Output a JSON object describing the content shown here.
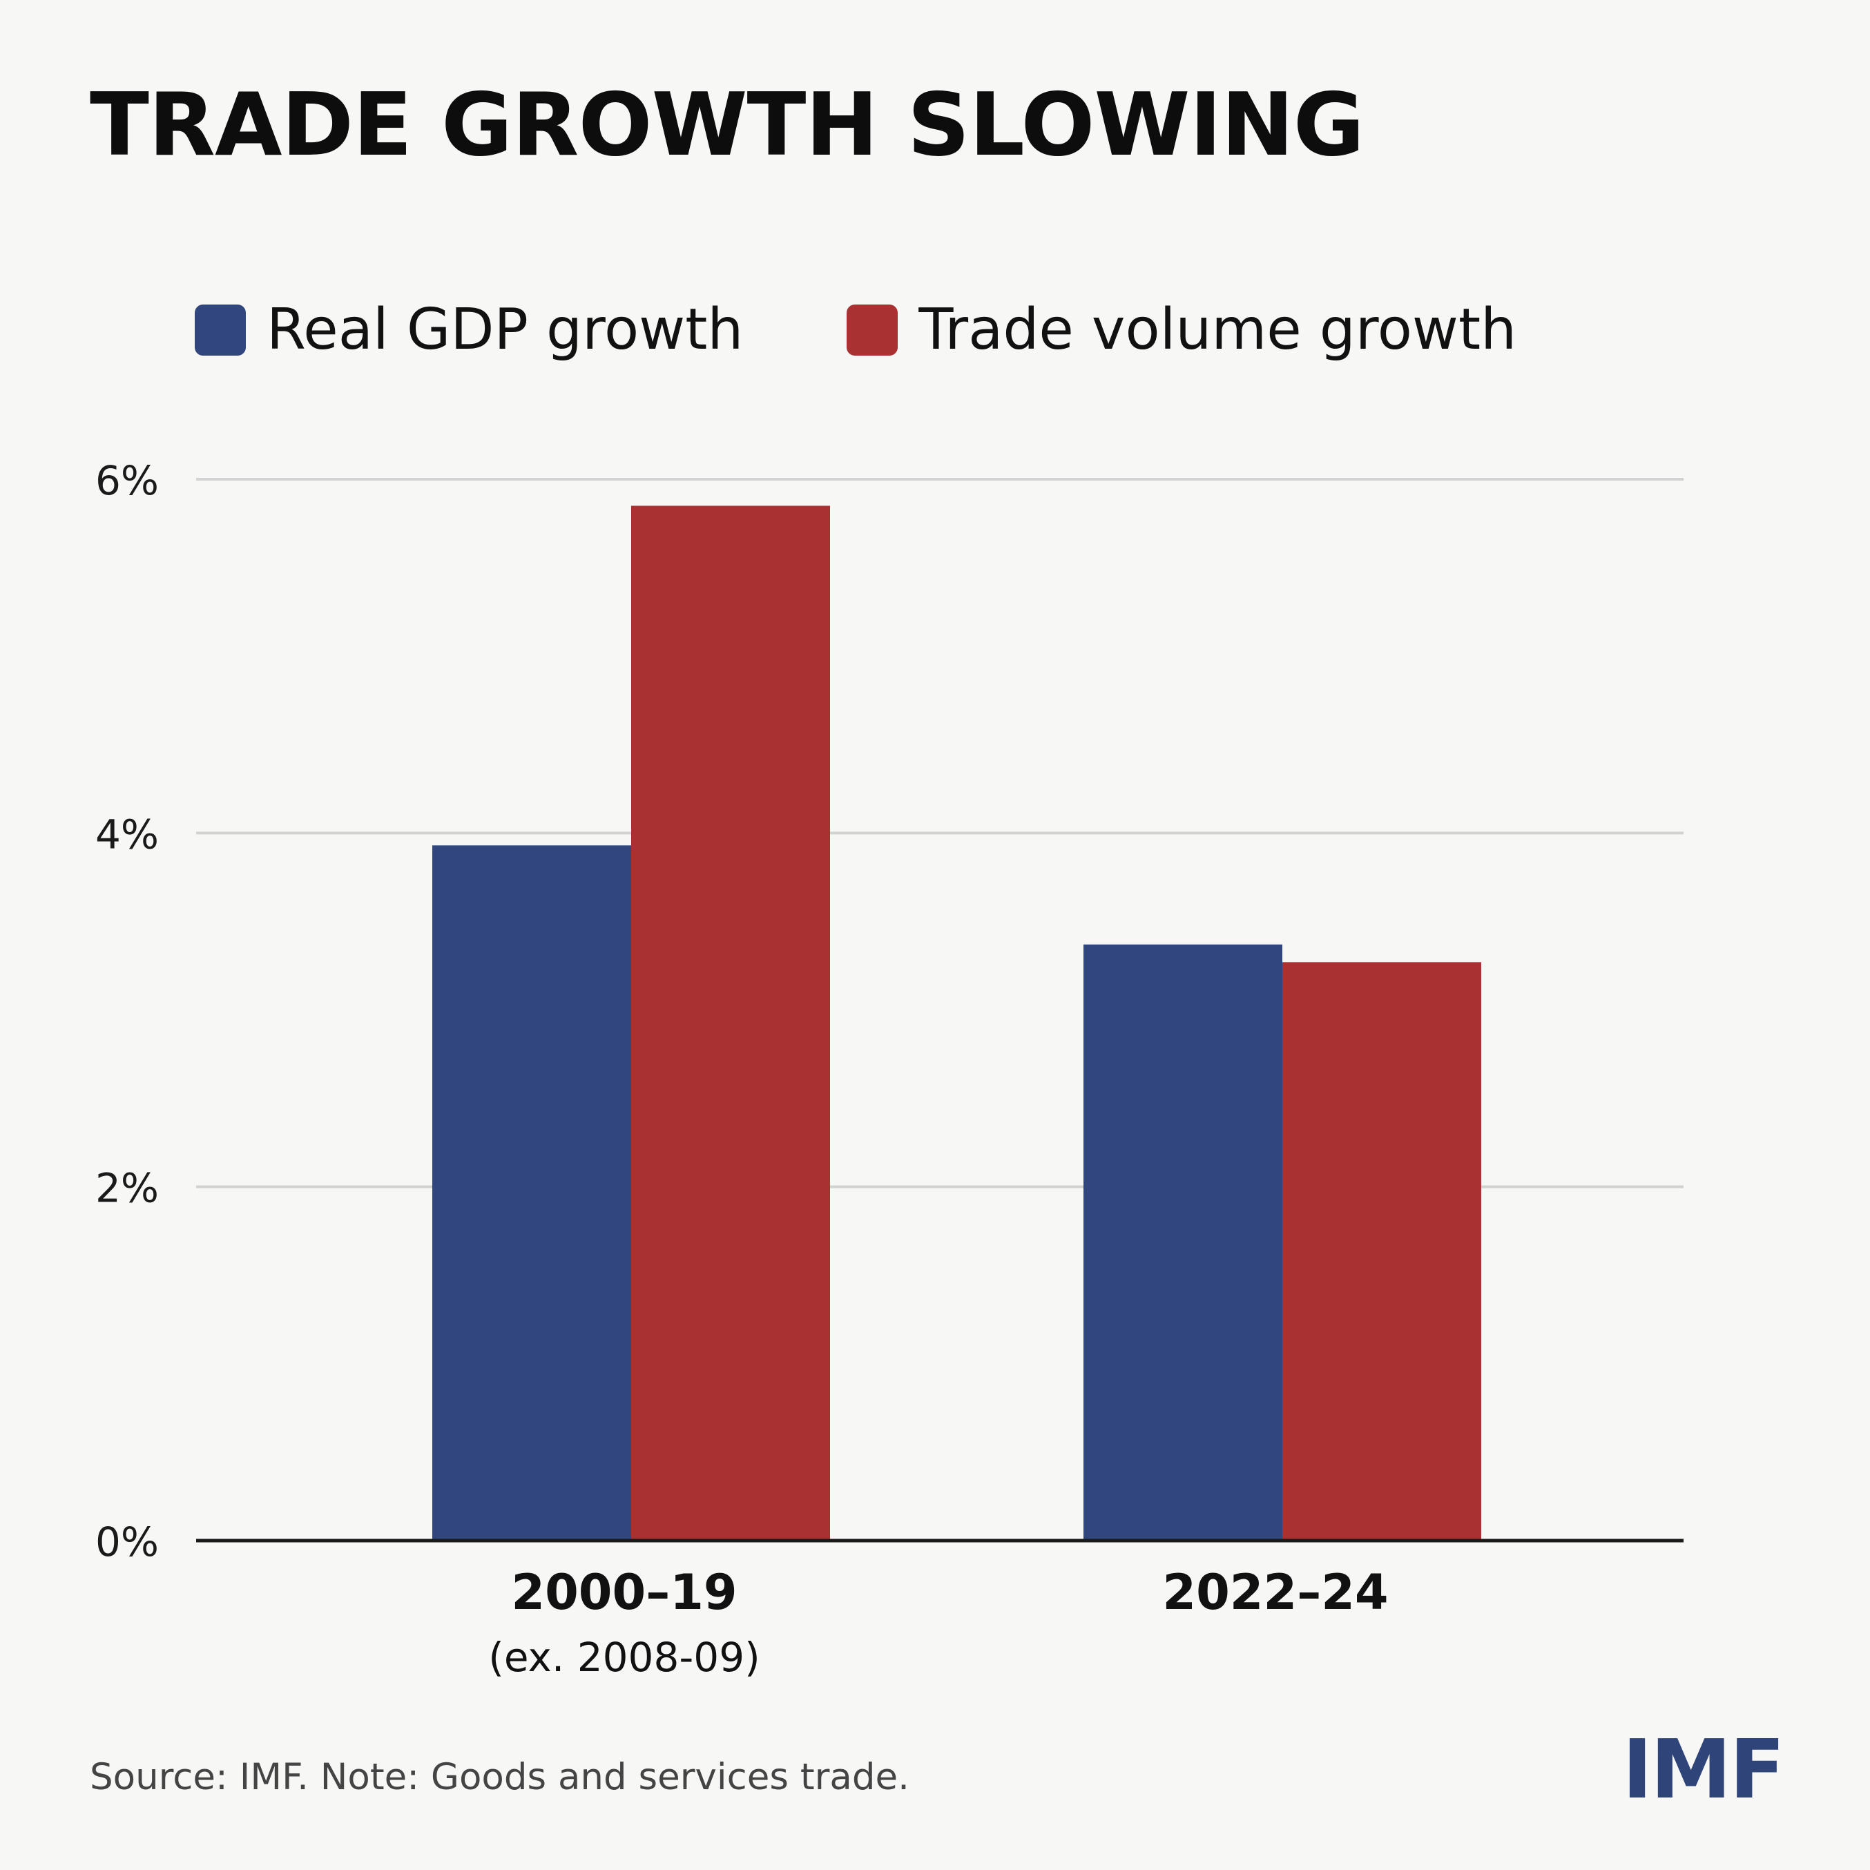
{
  "title": "TRADE GROWTH SLOWING",
  "legend": [
    {
      "label": "Real GDP growth",
      "color": "#30467c"
    },
    {
      "label": "Trade volume growth",
      "color": "#aa3131"
    }
  ],
  "source_note": "Source: IMF. Note: Goods and services trade.",
  "logo_text": "IMF",
  "chart_data": {
    "type": "bar",
    "title": "TRADE GROWTH SLOWING",
    "categories": [
      {
        "label": "2000–19",
        "sublabel": "(ex. 2008-09)"
      },
      {
        "label": "2022–24",
        "sublabel": ""
      }
    ],
    "series": [
      {
        "name": "Real GDP growth",
        "color": "#30467c",
        "values": [
          3.93,
          3.37
        ]
      },
      {
        "name": "Trade volume growth",
        "color": "#aa3131",
        "values": [
          5.85,
          3.27
        ]
      }
    ],
    "ylim": [
      0,
      6
    ],
    "yticks": [
      0,
      2,
      4,
      6
    ],
    "ytick_labels": [
      "0%",
      "2%",
      "4%",
      "6%"
    ],
    "xlabel": "",
    "ylabel": "",
    "grid": true,
    "legend_position": "top-left"
  }
}
